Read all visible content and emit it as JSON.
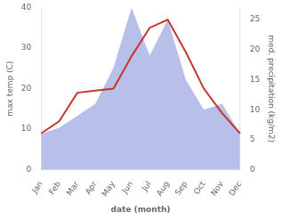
{
  "chart_data": {
    "type": "line",
    "categories": [
      "Jan",
      "Feb",
      "Mar",
      "Apr",
      "May",
      "Jun",
      "Jul",
      "Aug",
      "Sep",
      "Oct",
      "Nov",
      "Dec"
    ],
    "xlabel": "date (month)",
    "ylabel": "max temp (C)",
    "y2label": "med. precipitation (kg/m2)",
    "series": [
      {
        "type": "area",
        "axis": "y2",
        "color": "#b8bfe8",
        "values": [
          6,
          7,
          9,
          11,
          17,
          27,
          19,
          25,
          15,
          10,
          11,
          6
        ]
      },
      {
        "type": "line",
        "color": "#c0392b",
        "values": [
          9,
          12,
          19,
          19.5,
          20,
          28,
          35,
          37,
          29,
          20,
          14,
          9
        ]
      }
    ],
    "ylim": [
      0,
      40
    ],
    "yticks": [
      0,
      10,
      20,
      30,
      40
    ],
    "y2lim": [
      0,
      27
    ],
    "y2ticks": [
      0,
      5,
      10,
      15,
      20,
      25
    ],
    "grid": false
  }
}
